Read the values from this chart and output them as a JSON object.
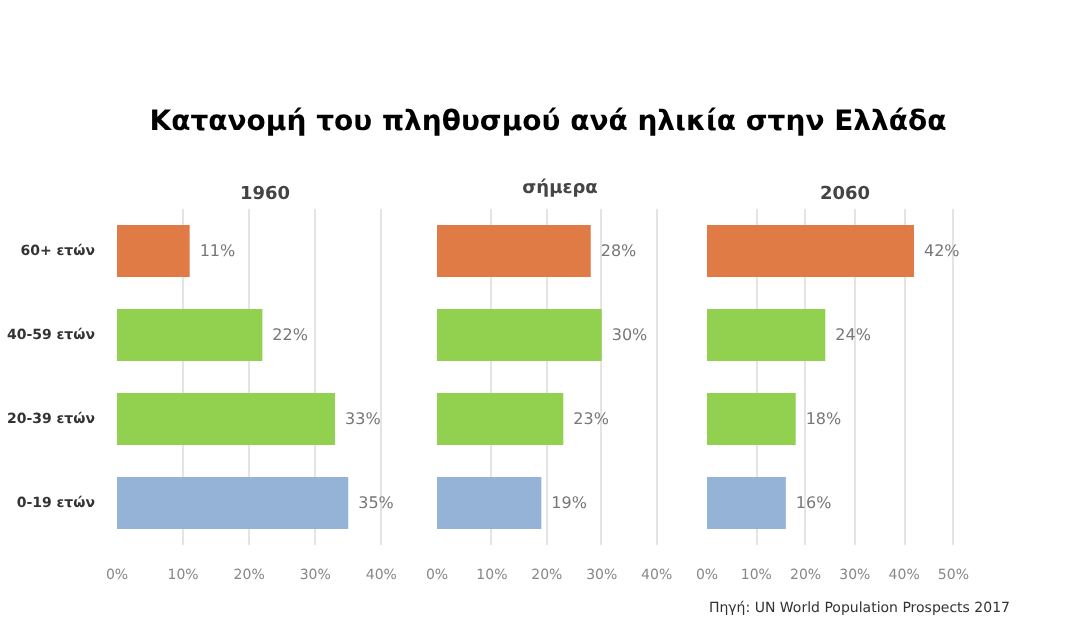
{
  "chart_data": [
    {
      "type": "other",
      "title": "Κατανομή του πληθυσμού ανά ηλικία στην Ελλάδα"
    },
    {
      "type": "bar",
      "orientation": "horizontal",
      "title": "1960",
      "categories": [
        "60+ ετών",
        "40-59 ετών",
        "20-39 ετών",
        "0-19 ετών"
      ],
      "values": [
        11,
        22,
        33,
        35
      ],
      "value_labels": [
        "11%",
        "22%",
        "33%",
        "35%"
      ],
      "colors": [
        "#e07b45",
        "#92d050",
        "#92d050",
        "#95b3d7"
      ],
      "xlim": [
        0,
        40
      ],
      "xticks": [
        {
          "value": 0,
          "label": "0%"
        },
        {
          "value": 10,
          "label": "10%"
        },
        {
          "value": 20,
          "label": "20%"
        },
        {
          "value": 30,
          "label": "30%"
        },
        {
          "value": 40,
          "label": "40%"
        }
      ],
      "grid": "x"
    },
    {
      "type": "bar",
      "orientation": "horizontal",
      "title": "σήμερα",
      "categories": [
        null,
        null,
        null,
        null
      ],
      "values": [
        28,
        30,
        23,
        19
      ],
      "value_labels": [
        "28%",
        "30%",
        "23%",
        "19%"
      ],
      "colors": [
        "#e07b45",
        "#92d050",
        "#92d050",
        "#95b3d7"
      ],
      "xlim": [
        0,
        40
      ],
      "xticks": [
        {
          "value": 0,
          "label": "0%"
        },
        {
          "value": 10,
          "label": "10%"
        },
        {
          "value": 20,
          "label": "20%"
        },
        {
          "value": 30,
          "label": "30%"
        },
        {
          "value": 40,
          "label": "40%"
        }
      ],
      "grid": "x",
      "tick_labels": "x"
    },
    {
      "type": "bar",
      "orientation": "horizontal",
      "title": "2060",
      "categories": [
        null,
        null,
        null,
        null
      ],
      "values": [
        42,
        24,
        18,
        16
      ],
      "value_labels": [
        "42%",
        "24%",
        "18%",
        "16%"
      ],
      "colors": [
        "#e07b45",
        "#92d050",
        "#92d050",
        "#95b3d7"
      ],
      "xlim": [
        0,
        50
      ],
      "xticks": [
        {
          "value": 0,
          "label": "0%"
        },
        {
          "value": 10,
          "label": "10%"
        },
        {
          "value": 20,
          "label": "20%"
        },
        {
          "value": 30,
          "label": "30%"
        },
        {
          "value": 40,
          "label": "40%"
        },
        {
          "value": 50,
          "label": "50%"
        }
      ],
      "grid": "x",
      "tick_labels": "x",
      "annotations": [
        "Πηγή: UN World Population Prospects 2017"
      ]
    }
  ]
}
